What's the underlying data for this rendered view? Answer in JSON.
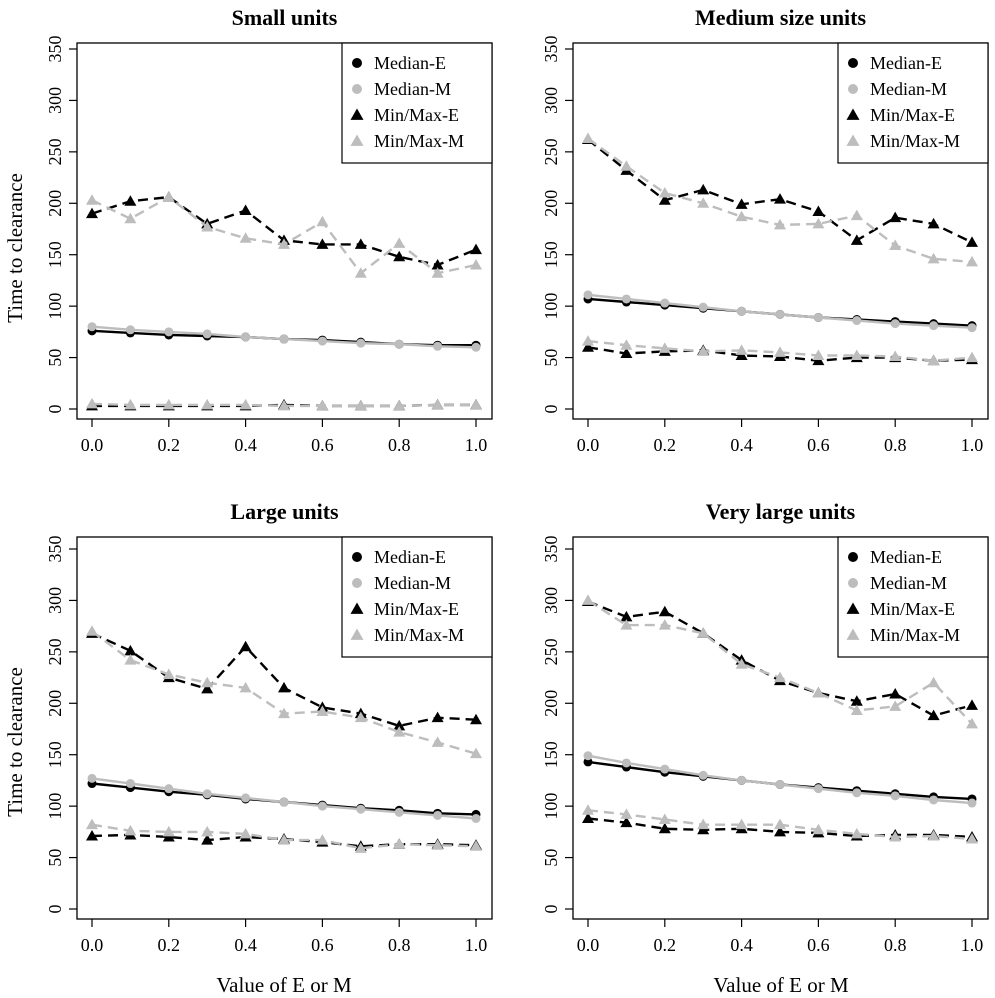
{
  "chart_data": [
    {
      "type": "line",
      "title": "Small units",
      "xlabel": "",
      "ylabel": "Time to clearance",
      "xlim": [
        0,
        1
      ],
      "ylim": [
        0,
        350
      ],
      "x": [
        0.0,
        0.1,
        0.2,
        0.3,
        0.4,
        0.5,
        0.6,
        0.7,
        0.8,
        0.9,
        1.0
      ],
      "x_ticks": [
        0.0,
        0.2,
        0.4,
        0.6,
        0.8,
        1.0
      ],
      "x_tick_labels": [
        "0.0",
        "0.2",
        "0.4",
        "0.6",
        "0.8",
        "1.0"
      ],
      "y_ticks": [
        0,
        50,
        100,
        150,
        200,
        250,
        300,
        350
      ],
      "y_tick_labels": [
        "0",
        "50",
        "100",
        "150",
        "200",
        "250",
        "300",
        "350"
      ],
      "legend": [
        "Median-E",
        "Median-M",
        "Min/Max-E",
        "Min/Max-M"
      ],
      "legend_position": "top-right",
      "series": [
        {
          "name": "Median-E",
          "color": "#000000",
          "style": "solid",
          "marker": "circle",
          "values": [
            76,
            74,
            72,
            71,
            70,
            68,
            67,
            65,
            63,
            62,
            62
          ]
        },
        {
          "name": "Median-M",
          "color": "#bdbdbd",
          "style": "solid",
          "marker": "circle",
          "values": [
            80,
            77,
            75,
            73,
            70,
            68,
            66,
            64,
            63,
            61,
            60
          ]
        },
        {
          "name": "Min/Max-E",
          "color": "#000000",
          "style": "dashed",
          "marker": "triangle",
          "values": [
            190,
            202,
            206,
            180,
            193,
            164,
            160,
            160,
            148,
            140,
            155
          ]
        },
        {
          "name": "Min/Max-M",
          "color": "#bdbdbd",
          "style": "dashed",
          "marker": "triangle",
          "values": [
            203,
            185,
            206,
            177,
            166,
            160,
            182,
            132,
            161,
            132,
            140
          ]
        },
        {
          "name": "Min/Max-E (min)",
          "color": "#000000",
          "style": "dashed",
          "marker": "triangle",
          "values": [
            3,
            3,
            3,
            3,
            3,
            4,
            3,
            3,
            3,
            4,
            4
          ]
        },
        {
          "name": "Min/Max-M (min)",
          "color": "#bdbdbd",
          "style": "dashed",
          "marker": "triangle",
          "values": [
            5,
            4,
            4,
            4,
            4,
            3,
            3,
            3,
            3,
            4,
            4
          ]
        }
      ]
    },
    {
      "type": "line",
      "title": "Medium size units",
      "xlabel": "",
      "ylabel": "",
      "xlim": [
        0,
        1
      ],
      "ylim": [
        0,
        350
      ],
      "x": [
        0.0,
        0.1,
        0.2,
        0.3,
        0.4,
        0.5,
        0.6,
        0.7,
        0.8,
        0.9,
        1.0
      ],
      "x_ticks": [
        0.0,
        0.2,
        0.4,
        0.6,
        0.8,
        1.0
      ],
      "x_tick_labels": [
        "0.0",
        "0.2",
        "0.4",
        "0.6",
        "0.8",
        "1.0"
      ],
      "y_ticks": [
        0,
        50,
        100,
        150,
        200,
        250,
        300,
        350
      ],
      "y_tick_labels": [
        "0",
        "50",
        "100",
        "150",
        "200",
        "250",
        "300",
        "350"
      ],
      "legend": [
        "Median-E",
        "Median-M",
        "Min/Max-E",
        "Min/Max-M"
      ],
      "legend_position": "top-right",
      "series": [
        {
          "name": "Median-E",
          "color": "#000000",
          "style": "solid",
          "marker": "circle",
          "values": [
            107,
            104,
            101,
            98,
            95,
            92,
            89,
            87,
            85,
            83,
            81
          ]
        },
        {
          "name": "Median-M",
          "color": "#bdbdbd",
          "style": "solid",
          "marker": "circle",
          "values": [
            111,
            107,
            103,
            99,
            95,
            92,
            89,
            86,
            83,
            81,
            79
          ]
        },
        {
          "name": "Min/Max-E",
          "color": "#000000",
          "style": "dashed",
          "marker": "triangle",
          "values": [
            262,
            232,
            203,
            213,
            199,
            204,
            192,
            164,
            186,
            180,
            162
          ]
        },
        {
          "name": "Min/Max-M",
          "color": "#bdbdbd",
          "style": "dashed",
          "marker": "triangle",
          "values": [
            263,
            236,
            210,
            200,
            187,
            179,
            180,
            188,
            159,
            146,
            143
          ]
        },
        {
          "name": "Min/Max-E (min)",
          "color": "#000000",
          "style": "dashed",
          "marker": "triangle",
          "values": [
            60,
            54,
            56,
            57,
            52,
            51,
            47,
            50,
            50,
            47,
            48
          ]
        },
        {
          "name": "Min/Max-M (min)",
          "color": "#bdbdbd",
          "style": "dashed",
          "marker": "triangle",
          "values": [
            66,
            62,
            59,
            56,
            57,
            55,
            52,
            52,
            51,
            47,
            50
          ]
        }
      ]
    },
    {
      "type": "line",
      "title": "Large units",
      "xlabel": "",
      "ylabel": "Time to clearance",
      "xlim": [
        0,
        1
      ],
      "ylim": [
        0,
        350
      ],
      "x": [
        0.0,
        0.1,
        0.2,
        0.3,
        0.4,
        0.5,
        0.6,
        0.7,
        0.8,
        0.9,
        1.0
      ],
      "x_ticks": [
        0.0,
        0.2,
        0.4,
        0.6,
        0.8,
        1.0
      ],
      "x_tick_labels": [
        "0.0",
        "0.2",
        "0.4",
        "0.6",
        "0.8",
        "1.0"
      ],
      "y_ticks": [
        0,
        50,
        100,
        150,
        200,
        250,
        300,
        350
      ],
      "y_tick_labels": [
        "0",
        "50",
        "100",
        "150",
        "200",
        "250",
        "300",
        "350"
      ],
      "legend": [
        "Median-E",
        "Median-M",
        "Min/Max-E",
        "Min/Max-M"
      ],
      "legend_position": "top-right",
      "series": [
        {
          "name": "Median-E",
          "color": "#000000",
          "style": "solid",
          "marker": "circle",
          "values": [
            122,
            118,
            114,
            111,
            107,
            104,
            101,
            98,
            96,
            93,
            92
          ]
        },
        {
          "name": "Median-M",
          "color": "#bdbdbd",
          "style": "solid",
          "marker": "circle",
          "values": [
            127,
            122,
            117,
            112,
            108,
            104,
            100,
            97,
            94,
            91,
            88
          ]
        },
        {
          "name": "Min/Max-E",
          "color": "#000000",
          "style": "dashed",
          "marker": "triangle",
          "values": [
            268,
            251,
            225,
            214,
            255,
            215,
            196,
            190,
            178,
            186,
            184
          ]
        },
        {
          "name": "Min/Max-M",
          "color": "#bdbdbd",
          "style": "dashed",
          "marker": "triangle",
          "values": [
            270,
            242,
            228,
            220,
            215,
            190,
            192,
            186,
            172,
            162,
            151
          ]
        },
        {
          "name": "Min/Max-E (min)",
          "color": "#000000",
          "style": "dashed",
          "marker": "triangle",
          "values": [
            71,
            72,
            70,
            67,
            70,
            68,
            65,
            61,
            63,
            63,
            62
          ]
        },
        {
          "name": "Min/Max-M (min)",
          "color": "#bdbdbd",
          "style": "dashed",
          "marker": "triangle",
          "values": [
            82,
            76,
            75,
            75,
            73,
            67,
            67,
            59,
            63,
            62,
            61
          ]
        }
      ]
    },
    {
      "type": "line",
      "title": "Very large units",
      "xlabel": "Value of E or M",
      "ylabel": "",
      "xlim": [
        0,
        1
      ],
      "ylim": [
        0,
        350
      ],
      "x": [
        0.0,
        0.1,
        0.2,
        0.3,
        0.4,
        0.5,
        0.6,
        0.7,
        0.8,
        0.9,
        1.0
      ],
      "x_ticks": [
        0.0,
        0.2,
        0.4,
        0.6,
        0.8,
        1.0
      ],
      "x_tick_labels": [
        "0.0",
        "0.2",
        "0.4",
        "0.6",
        "0.8",
        "1.0"
      ],
      "y_ticks": [
        0,
        50,
        100,
        150,
        200,
        250,
        300,
        350
      ],
      "y_tick_labels": [
        "0",
        "50",
        "100",
        "150",
        "200",
        "250",
        "300",
        "350"
      ],
      "legend": [
        "Median-E",
        "Median-M",
        "Min/Max-E",
        "Min/Max-M"
      ],
      "legend_position": "top-right",
      "series": [
        {
          "name": "Median-E",
          "color": "#000000",
          "style": "solid",
          "marker": "circle",
          "values": [
            143,
            138,
            133,
            129,
            125,
            121,
            118,
            115,
            112,
            109,
            107
          ]
        },
        {
          "name": "Median-M",
          "color": "#bdbdbd",
          "style": "solid",
          "marker": "circle",
          "values": [
            149,
            142,
            136,
            130,
            125,
            121,
            117,
            113,
            110,
            106,
            103
          ]
        },
        {
          "name": "Min/Max-E",
          "color": "#000000",
          "style": "dashed",
          "marker": "triangle",
          "values": [
            299,
            284,
            289,
            268,
            242,
            222,
            210,
            202,
            209,
            188,
            198
          ]
        },
        {
          "name": "Min/Max-M",
          "color": "#bdbdbd",
          "style": "dashed",
          "marker": "triangle",
          "values": [
            300,
            276,
            276,
            268,
            238,
            225,
            210,
            193,
            197,
            220,
            180
          ]
        },
        {
          "name": "Min/Max-E (min)",
          "color": "#000000",
          "style": "dashed",
          "marker": "triangle",
          "values": [
            88,
            84,
            78,
            77,
            78,
            75,
            74,
            71,
            72,
            72,
            70
          ]
        },
        {
          "name": "Min/Max-M (min)",
          "color": "#bdbdbd",
          "style": "dashed",
          "marker": "triangle",
          "values": [
            96,
            92,
            87,
            82,
            82,
            82,
            77,
            73,
            70,
            71,
            68
          ]
        }
      ]
    }
  ],
  "figure": {
    "ylabel_top": "Time to clearance",
    "ylabel_bottom": "Time to clearance",
    "xlabel_left": "Value of E or M",
    "xlabel_right": "Value of E or M"
  }
}
